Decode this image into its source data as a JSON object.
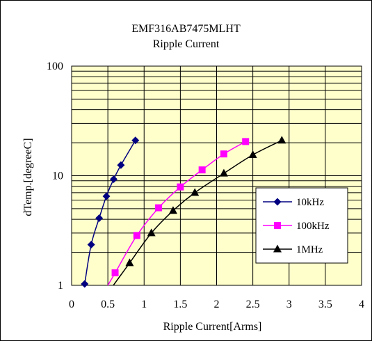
{
  "chart_data": {
    "type": "scatter",
    "title": "EMF316AB7475MLHT",
    "subtitle": "Ripple Current",
    "xlabel": "Ripple Current[Arms]",
    "ylabel": "dTemp.[degreeC]",
    "xlim": [
      0,
      4
    ],
    "ylim": [
      1,
      100
    ],
    "yscale": "log",
    "x_ticks": [
      "0",
      "0.5",
      "1",
      "1.5",
      "2",
      "2.5",
      "3",
      "3.5",
      "4"
    ],
    "y_ticks": [
      "1",
      "10",
      "100"
    ],
    "grid": true,
    "plot_background": "#ffffcc",
    "legend_position": "right-center",
    "series": [
      {
        "name": "10kHz",
        "color": "#000080",
        "marker": "diamond",
        "x": [
          0.18,
          0.27,
          0.38,
          0.48,
          0.58,
          0.68,
          0.88
        ],
        "y": [
          1.03,
          2.35,
          4.1,
          6.5,
          9.3,
          12.5,
          21
        ]
      },
      {
        "name": "100kHz",
        "color": "#ff00ff",
        "marker": "square",
        "x": [
          0.6,
          0.9,
          1.2,
          1.5,
          1.8,
          2.1,
          2.4
        ],
        "y": [
          1.3,
          2.85,
          5.1,
          7.9,
          11.3,
          15.8,
          20.5
        ]
      },
      {
        "name": "1MHz",
        "color": "#000000",
        "marker": "triangle",
        "x": [
          0.8,
          1.1,
          1.4,
          1.7,
          2.1,
          2.5,
          2.9
        ],
        "y": [
          1.6,
          3.0,
          4.8,
          7.0,
          10.5,
          15.5,
          21
        ]
      }
    ]
  }
}
